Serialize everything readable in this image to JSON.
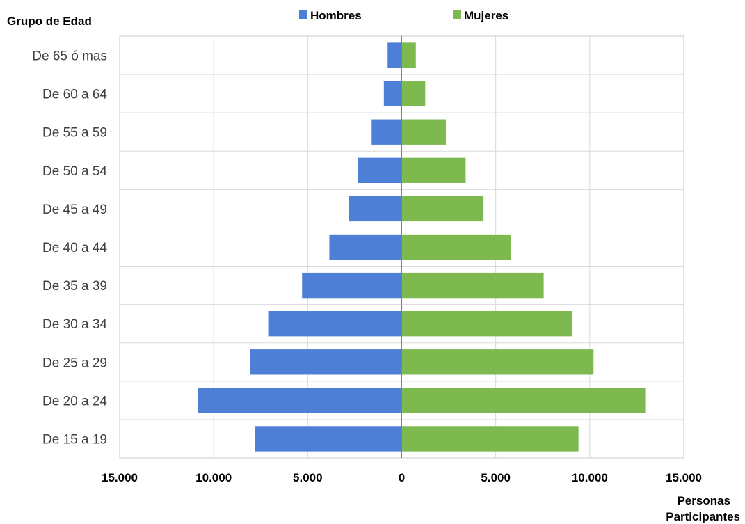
{
  "chart_data": {
    "type": "bar",
    "orientation": "horizontal-diverging",
    "y_axis_title": "Grupo de Edad",
    "x_axis_title_line1": "Personas",
    "x_axis_title_line2": "Participantes",
    "categories": [
      "De 65 ó mas",
      "De 60 a 64",
      "De 55 a 59",
      "De 50 a 54",
      "De 45 a 49",
      "De 40 a 44",
      "De 35 a 39",
      "De 30 a 34",
      "De 25 a 29",
      "De 20 a 24",
      "De 15 a 19"
    ],
    "series": [
      {
        "name": "Hombres",
        "color": "#4e7fd6",
        "direction": "left",
        "values": [
          750,
          950,
          1600,
          2350,
          2800,
          3850,
          5300,
          7100,
          8050,
          10850,
          7800
        ]
      },
      {
        "name": "Mujeres",
        "color": "#7db94e",
        "direction": "right",
        "values": [
          750,
          1250,
          2350,
          3400,
          4350,
          5800,
          7550,
          9050,
          10200,
          12950,
          9400
        ]
      }
    ],
    "xlim": [
      -15000,
      15000
    ],
    "x_ticks": [
      -15000,
      -10000,
      -5000,
      0,
      5000,
      10000,
      15000
    ],
    "x_tick_labels": [
      "15.000",
      "10.000",
      "5.000",
      "0",
      "5.000",
      "10.000",
      "15.000"
    ],
    "grid": true,
    "legend_position": "top"
  }
}
